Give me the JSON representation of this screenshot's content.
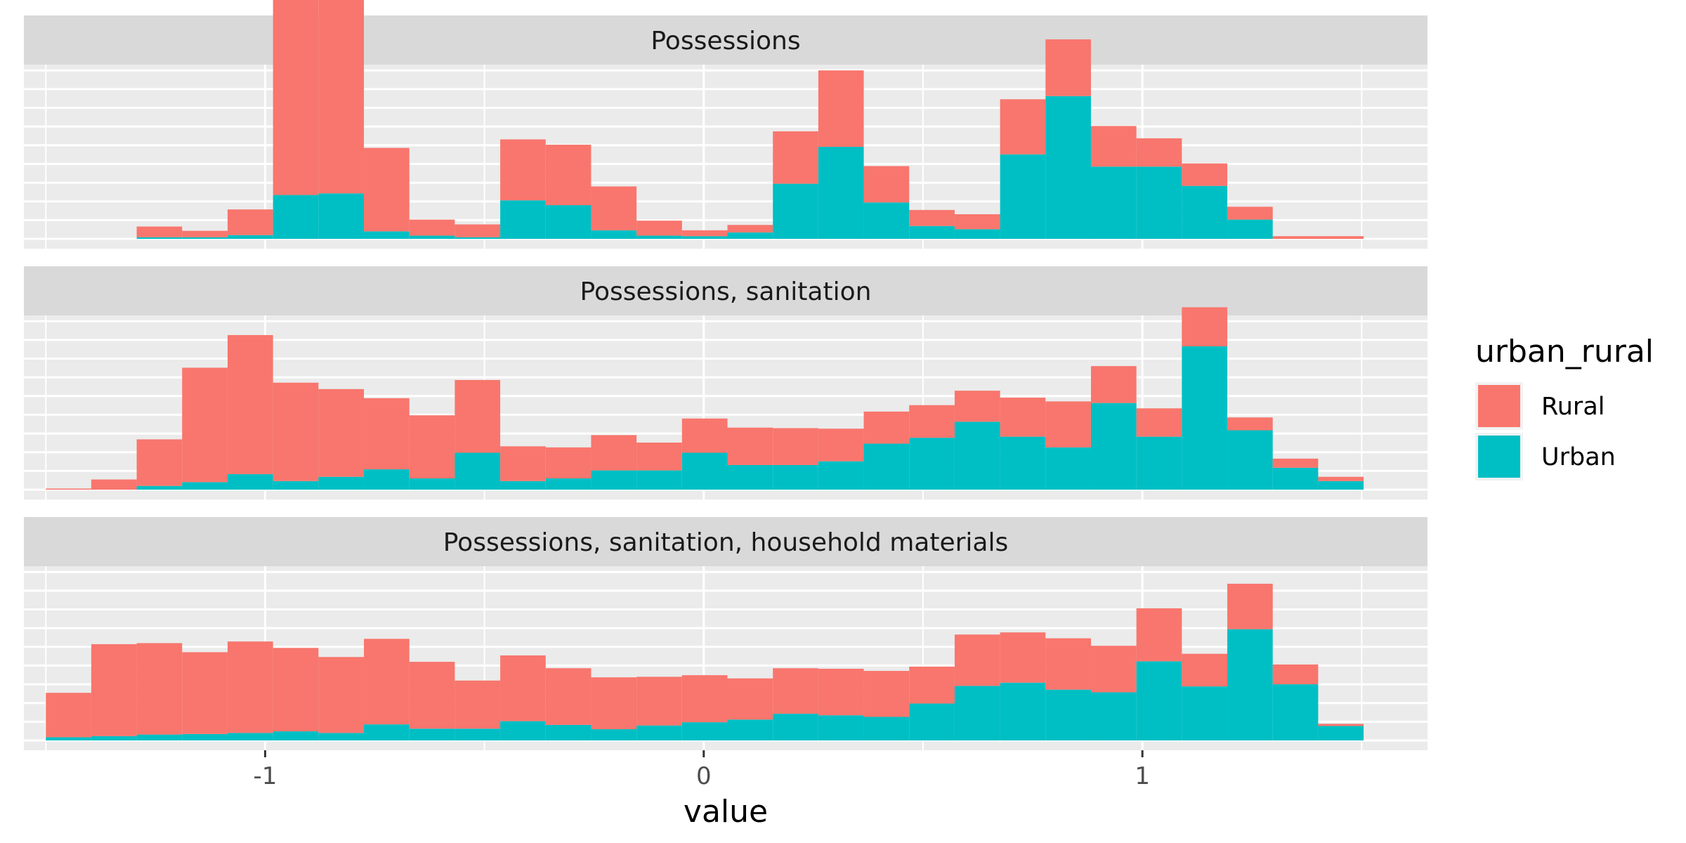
{
  "chart_data": {
    "type": "bar",
    "stacked": true,
    "facet": "rows",
    "xlabel": "value",
    "ylabel": "",
    "xlim": [
      -1.55,
      1.65
    ],
    "x_ticks": [
      -1,
      0,
      1
    ],
    "x_tick_labels": [
      "-1",
      "0",
      "1"
    ],
    "bin_width": 0.1036,
    "bins_start": -1.5,
    "legend": {
      "title": "urban_rural",
      "placement": "right",
      "entries": [
        {
          "name": "Rural",
          "color": "#F8766D"
        },
        {
          "name": "Urban",
          "color": "#00BFC4"
        }
      ]
    },
    "panels": [
      {
        "title": "Possessions",
        "series": [
          {
            "name": "Urban",
            "values": [
              0,
              0,
              0.3,
              0.3,
              0.7,
              8.2,
              8.5,
              1.4,
              0.6,
              0.3,
              7.2,
              6.3,
              1.6,
              0.6,
              0.5,
              1.2,
              10.3,
              17.2,
              6.8,
              2.4,
              1.8,
              15.8,
              26.7,
              13.5,
              13.5,
              9.9,
              3.6,
              0,
              0
            ]
          },
          {
            "name": "Rural",
            "values": [
              0,
              0,
              2.0,
              1.2,
              4.8,
              44.8,
              36.2,
              15.6,
              3.0,
              2.4,
              11.4,
              11.3,
              8.2,
              2.8,
              1.1,
              1.4,
              9.8,
              14.3,
              6.8,
              3.0,
              2.8,
              10.3,
              10.6,
              7.6,
              5.3,
              4.2,
              2.4,
              0.5,
              0.5
            ]
          }
        ]
      },
      {
        "title": "Possessions, sanitation",
        "series": [
          {
            "name": "Urban",
            "values": [
              0,
              0,
              0.7,
              1.4,
              2.9,
              1.6,
              2.4,
              3.8,
              2.1,
              6.9,
              1.6,
              2.1,
              3.6,
              3.6,
              6.9,
              4.6,
              4.6,
              5.3,
              8.6,
              9.7,
              12.7,
              9.9,
              7.9,
              16.2,
              9.9,
              26.8,
              11.1,
              4.1,
              1.6
            ]
          },
          {
            "name": "Rural",
            "values": [
              0.2,
              1.9,
              8.7,
              21.4,
              26.0,
              18.4,
              16.4,
              13.3,
              11.8,
              13.6,
              6.5,
              5.8,
              6.6,
              5.2,
              6.4,
              7.0,
              6.9,
              6.1,
              6.0,
              6.1,
              5.8,
              7.3,
              8.6,
              6.9,
              5.3,
              7.3,
              2.4,
              1.7,
              0.8
            ]
          }
        ]
      },
      {
        "title": "Possessions, sanitation, household materials",
        "series": [
          {
            "name": "Urban",
            "values": [
              0.6,
              0.8,
              1.1,
              1.2,
              1.4,
              1.7,
              1.4,
              3.0,
              2.2,
              2.2,
              3.6,
              2.9,
              2.1,
              2.8,
              3.4,
              3.9,
              5.0,
              4.7,
              4.4,
              6.9,
              10.2,
              10.8,
              9.5,
              9.0,
              14.8,
              10.1,
              20.8,
              10.5,
              2.7
            ]
          },
          {
            "name": "Rural",
            "values": [
              8.3,
              17.2,
              17.1,
              15.3,
              17.1,
              15.6,
              14.2,
              16.0,
              12.5,
              9.0,
              12.3,
              10.6,
              9.7,
              9.1,
              8.8,
              7.7,
              8.5,
              8.7,
              8.6,
              6.9,
              9.6,
              9.4,
              9.6,
              8.7,
              9.9,
              6.1,
              8.5,
              3.7,
              0.4
            ]
          }
        ]
      }
    ]
  }
}
